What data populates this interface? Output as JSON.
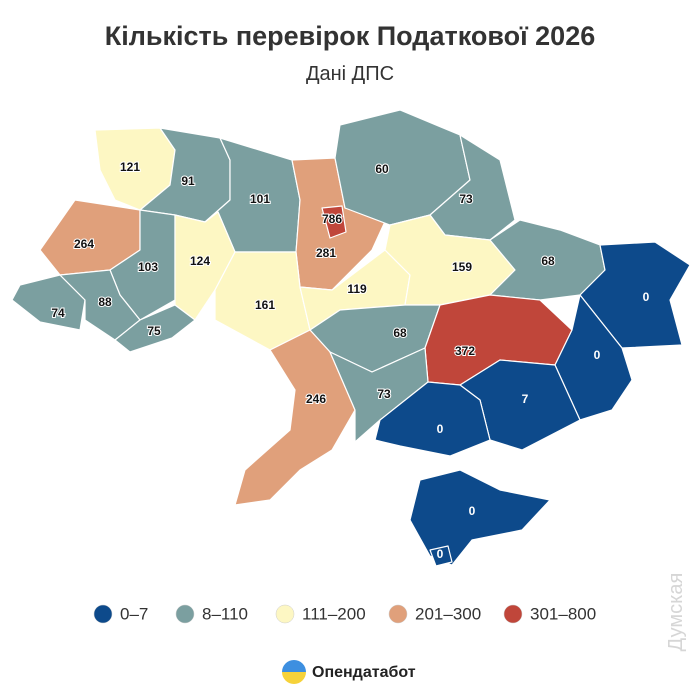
{
  "header": {
    "title": "Кількість перевірок Податкової 2026",
    "subtitle": "Дані ДПС"
  },
  "map": {
    "regions": [
      {
        "value": 121,
        "color": "#fdf7c3"
      },
      {
        "value": 91,
        "color": "#7b9fa0"
      },
      {
        "value": 101,
        "color": "#7b9fa0"
      },
      {
        "value": 281,
        "color": "#e0a07b"
      },
      {
        "value": 786,
        "color": "#c0463a"
      },
      {
        "value": 60,
        "color": "#7b9fa0"
      },
      {
        "value": 73,
        "color": "#7b9fa0"
      },
      {
        "value": 264,
        "color": "#e0a07b"
      },
      {
        "value": 103,
        "color": "#7b9fa0"
      },
      {
        "value": 124,
        "color": "#fdf7c3"
      },
      {
        "value": 161,
        "color": "#fdf7c3"
      },
      {
        "value": 119,
        "color": "#fdf7c3"
      },
      {
        "value": 159,
        "color": "#fdf7c3"
      },
      {
        "value": 68,
        "color": "#7b9fa0"
      },
      {
        "value": 0,
        "color": "#0d4a8b"
      },
      {
        "value": 74,
        "color": "#7b9fa0"
      },
      {
        "value": 88,
        "color": "#7b9fa0"
      },
      {
        "value": 75,
        "color": "#7b9fa0"
      },
      {
        "value": 68,
        "color": "#7b9fa0"
      },
      {
        "value": 372,
        "color": "#c0463a"
      },
      {
        "value": 0,
        "color": "#0d4a8b"
      },
      {
        "value": 246,
        "color": "#e0a07b"
      },
      {
        "value": 73,
        "color": "#7b9fa0"
      },
      {
        "value": 7,
        "color": "#0d4a8b"
      },
      {
        "value": 0,
        "color": "#0d4a8b"
      },
      {
        "value": 0,
        "color": "#0d4a8b"
      },
      {
        "value": 0,
        "color": "#0d4a8b"
      }
    ]
  },
  "legend": [
    {
      "label": "0–7",
      "color": "#0d4a8b"
    },
    {
      "label": "8–110",
      "color": "#7b9fa0"
    },
    {
      "label": "111–200",
      "color": "#fdf7c3"
    },
    {
      "label": "201–300",
      "color": "#e0a07b"
    },
    {
      "label": "301–800",
      "color": "#c0463a"
    }
  ],
  "footer": {
    "brand": "Опендатабот",
    "watermark": "Думская"
  }
}
